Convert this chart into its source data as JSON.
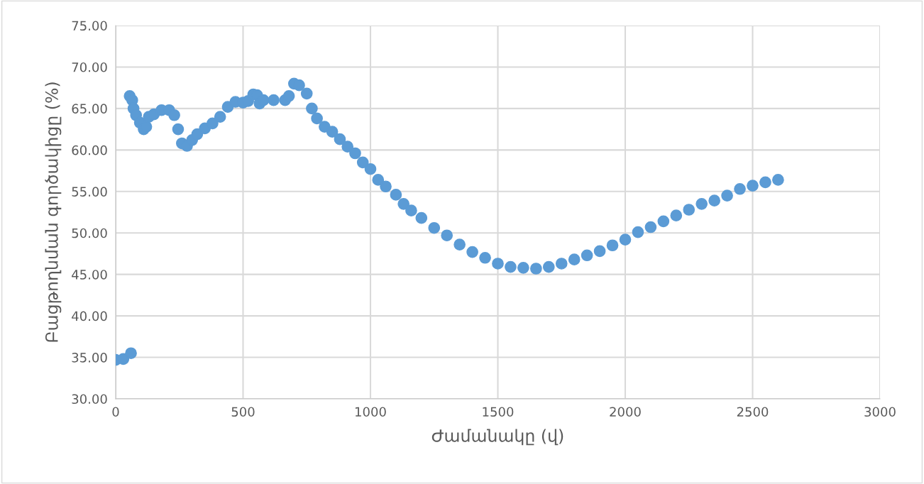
{
  "chart_data": {
    "type": "scatter",
    "xlabel": "Ժամանակը (վ)",
    "ylabel": "Բացթողնման գործակիցը (%)",
    "xlim": [
      0,
      3000
    ],
    "xticks": [
      0,
      500,
      1000,
      1500,
      2000,
      2500,
      3000
    ],
    "ylim": [
      30,
      75
    ],
    "yticks": [
      {
        "value": 30,
        "label": "30.00"
      },
      {
        "value": 35,
        "label": "35.00"
      },
      {
        "value": 40,
        "label": "40.00"
      },
      {
        "value": 45,
        "label": "45.00"
      },
      {
        "value": 50,
        "label": "50.00"
      },
      {
        "value": 55,
        "label": "55.00"
      },
      {
        "value": 60,
        "label": "60.00"
      },
      {
        "value": 65,
        "label": "65.00"
      },
      {
        "value": 70,
        "label": "70.00"
      },
      {
        "value": 75,
        "label": "75.00"
      }
    ],
    "grid": true,
    "marker": "circle",
    "series": [
      {
        "color": "#5b9bd5",
        "x": [
          0,
          30,
          60,
          55,
          65,
          70,
          80,
          95,
          110,
          120,
          130,
          150,
          180,
          210,
          230,
          245,
          260,
          280,
          300,
          320,
          350,
          380,
          410,
          440,
          470,
          500,
          520,
          540,
          555,
          565,
          580,
          620,
          665,
          680,
          700,
          720,
          750,
          770,
          790,
          820,
          850,
          880,
          910,
          940,
          970,
          1000,
          1030,
          1060,
          1100,
          1130,
          1160,
          1200,
          1250,
          1300,
          1350,
          1400,
          1450,
          1500,
          1550,
          1600,
          1650,
          1700,
          1750,
          1800,
          1850,
          1900,
          1950,
          2000,
          2050,
          2100,
          2150,
          2200,
          2250,
          2300,
          2350,
          2400,
          2450,
          2500,
          2550,
          2600
        ],
        "values": [
          34.7,
          34.8,
          35.5,
          66.5,
          66.0,
          65.0,
          64.2,
          63.3,
          62.5,
          62.8,
          64.0,
          64.3,
          64.8,
          64.8,
          64.2,
          62.5,
          60.8,
          60.5,
          61.2,
          61.9,
          62.6,
          63.2,
          64.0,
          65.2,
          65.8,
          65.7,
          65.9,
          66.7,
          66.6,
          65.6,
          66.0,
          66.0,
          66.0,
          66.5,
          68.0,
          67.8,
          66.8,
          65.0,
          63.8,
          62.8,
          62.2,
          61.3,
          60.4,
          59.6,
          58.5,
          57.7,
          56.4,
          55.6,
          54.6,
          53.5,
          52.7,
          51.8,
          50.6,
          49.7,
          48.6,
          47.7,
          47.0,
          46.3,
          45.9,
          45.8,
          45.7,
          45.9,
          46.3,
          46.8,
          47.3,
          47.8,
          48.5,
          49.2,
          50.1,
          50.7,
          51.4,
          52.1,
          52.8,
          53.5,
          53.9,
          54.5,
          55.3,
          55.7,
          56.1,
          56.4
        ]
      }
    ]
  }
}
